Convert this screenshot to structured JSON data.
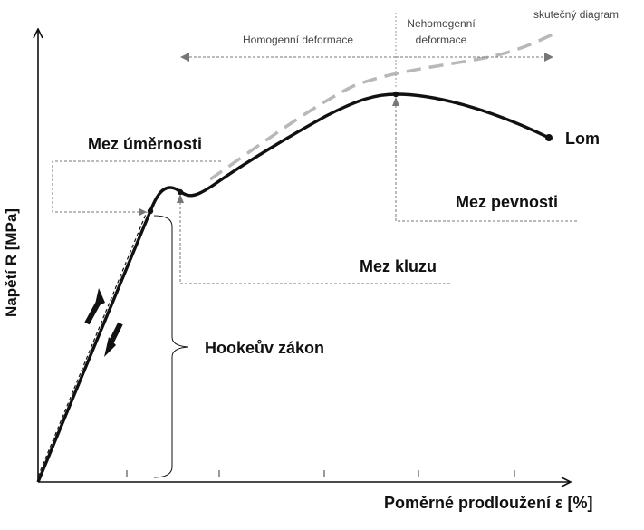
{
  "axes": {
    "y_label": "Napětí R [MPa]",
    "x_label": "Poměrné prodloužení ε [%]"
  },
  "annotations": {
    "homogenni": "Homogenní deformace",
    "nehomogenni_line1": "Nehomogenní",
    "nehomogenni_line2": "deformace",
    "skutecny": "skutečný diagram",
    "mez_umernosti": "Mez úměrnosti",
    "mez_kluzu": "Mez kluzu",
    "mez_pevnosti": "Mez pevnosti",
    "lom": "Lom",
    "hooke": "Hookeův zákon"
  },
  "colors": {
    "curve": "#111111",
    "true_curve": "#b8b8b8",
    "guides": "#777777"
  }
}
